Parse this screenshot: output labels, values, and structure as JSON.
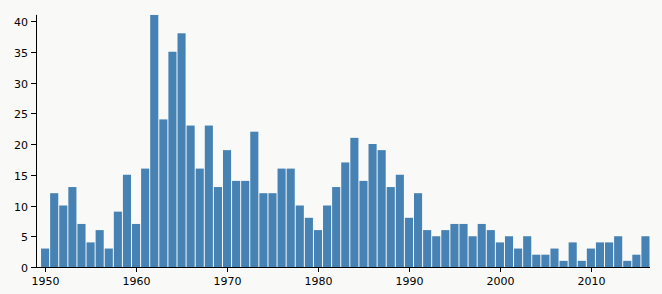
{
  "chart_data": {
    "type": "bar",
    "color": "#4682b4",
    "x": [
      1950,
      1951,
      1952,
      1953,
      1954,
      1955,
      1956,
      1957,
      1958,
      1959,
      1960,
      1961,
      1962,
      1963,
      1964,
      1965,
      1966,
      1967,
      1968,
      1969,
      1970,
      1971,
      1972,
      1973,
      1974,
      1975,
      1976,
      1977,
      1978,
      1979,
      1980,
      1981,
      1982,
      1983,
      1984,
      1985,
      1986,
      1987,
      1988,
      1989,
      1990,
      1991,
      1992,
      1993,
      1994,
      1995,
      1996,
      1997,
      1998,
      1999,
      2000,
      2001,
      2002,
      2003,
      2004,
      2005,
      2006,
      2007,
      2008,
      2009,
      2010,
      2011,
      2012,
      2013,
      2014,
      2015,
      2016
    ],
    "values": [
      3,
      12,
      10,
      13,
      7,
      4,
      6,
      3,
      9,
      15,
      7,
      16,
      41,
      24,
      35,
      38,
      23,
      16,
      23,
      13,
      19,
      14,
      14,
      22,
      12,
      12,
      16,
      16,
      10,
      8,
      6,
      10,
      13,
      17,
      21,
      14,
      20,
      19,
      13,
      15,
      8,
      12,
      6,
      5,
      6,
      7,
      7,
      5,
      7,
      6,
      4,
      5,
      3,
      5,
      2,
      2,
      3,
      1,
      4,
      1,
      3,
      4,
      4,
      5,
      1,
      2,
      5
    ],
    "xlim": [
      1949,
      2016.5
    ],
    "xticks": [
      1950,
      1960,
      1970,
      1980,
      1990,
      2000,
      2010
    ],
    "ylim": [
      0,
      41
    ],
    "yticks": [
      0,
      5,
      10,
      15,
      20,
      25,
      30,
      35,
      40
    ],
    "grid": false
  }
}
